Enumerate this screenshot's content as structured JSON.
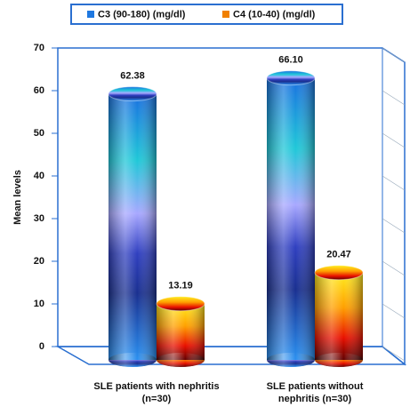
{
  "chart_data": {
    "type": "cylinder-bar",
    "categories": [
      "SLE patients with nephritis (n=30)",
      "SLE patients without nephritis (n=30)"
    ],
    "series": [
      {
        "name": "C3 (90-180) (mg/dl)",
        "color": "#1f78e0",
        "values": [
          62.38,
          66.1
        ],
        "value_labels": [
          "62.38",
          "66.10"
        ]
      },
      {
        "name": "C4 (10-40) (mg/dl)",
        "color": "#f08000",
        "values": [
          13.19,
          20.47
        ],
        "value_labels": [
          "13.19",
          "20.47"
        ]
      }
    ],
    "y_label": "Mean levels",
    "ylim": [
      0,
      70
    ],
    "yticks": [
      0,
      10,
      20,
      30,
      40,
      50,
      60,
      70
    ],
    "grid": false,
    "legend": "top"
  }
}
